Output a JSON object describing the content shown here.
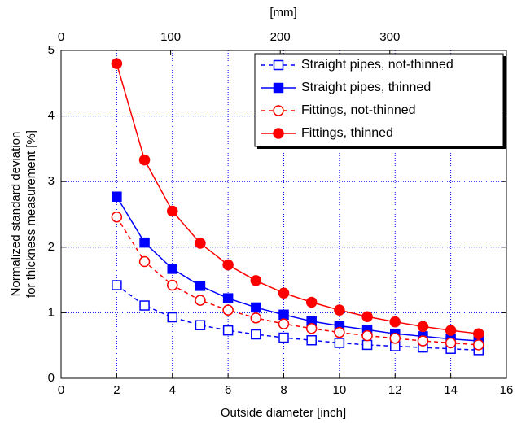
{
  "chart_data": {
    "type": "line",
    "xlabel": "Outside diameter [inch]",
    "ylabel": [
      "Normalized standard deviation",
      "for thickness measurement  [%]"
    ],
    "x2label": "[mm]",
    "x": [
      2,
      3,
      4,
      5,
      6,
      7,
      8,
      9,
      10,
      11,
      12,
      13,
      14,
      15
    ],
    "series": [
      {
        "name": "Straight pipes, not-thinned",
        "color": "#0000ff",
        "marker": "square",
        "filled": false,
        "dashed": true,
        "values": [
          1.42,
          1.11,
          0.93,
          0.81,
          0.73,
          0.67,
          0.62,
          0.58,
          0.54,
          0.51,
          0.49,
          0.47,
          0.45,
          0.43
        ]
      },
      {
        "name": "Straight pipes, thinned",
        "color": "#0000ff",
        "marker": "square",
        "filled": true,
        "dashed": false,
        "values": [
          2.77,
          2.07,
          1.67,
          1.41,
          1.22,
          1.08,
          0.97,
          0.87,
          0.8,
          0.74,
          0.68,
          0.64,
          0.6,
          0.57
        ]
      },
      {
        "name": "Fittings, not-thinned",
        "color": "#ff0000",
        "marker": "circle",
        "filled": false,
        "dashed": true,
        "values": [
          2.46,
          1.78,
          1.42,
          1.19,
          1.04,
          0.92,
          0.83,
          0.76,
          0.7,
          0.65,
          0.61,
          0.57,
          0.54,
          0.51
        ]
      },
      {
        "name": "Fittings, thinned",
        "color": "#ff0000",
        "marker": "circle",
        "filled": true,
        "dashed": false,
        "values": [
          4.8,
          3.33,
          2.55,
          2.06,
          1.73,
          1.49,
          1.3,
          1.16,
          1.04,
          0.94,
          0.86,
          0.79,
          0.73,
          0.68
        ]
      }
    ],
    "xlim": [
      0,
      16
    ],
    "xticks": [
      0,
      2,
      4,
      6,
      8,
      10,
      12,
      14,
      16
    ],
    "x2lim": [
      0,
      406.4
    ],
    "x2ticks": [
      0,
      100,
      200,
      300
    ],
    "ylim": [
      0,
      5
    ],
    "yticks": [
      0,
      1,
      2,
      3,
      4,
      5
    ],
    "grid": true,
    "grid_color": "#0000ff",
    "legend": "upper right"
  }
}
